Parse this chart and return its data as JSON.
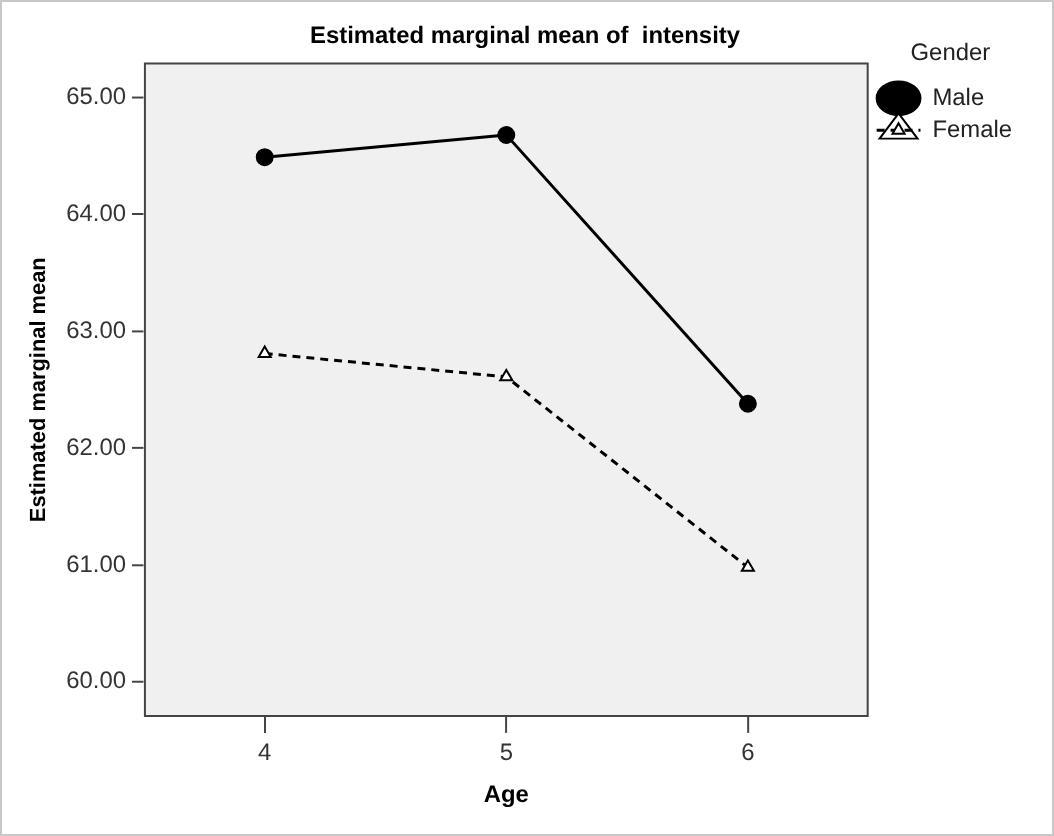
{
  "chart_data": {
    "type": "line",
    "title": "Estimated marginal mean of  intensity",
    "xlabel": "Age",
    "ylabel": "Estimated marginal mean",
    "legend_title": "Gender",
    "categories": [
      "4",
      "5",
      "6"
    ],
    "series": [
      {
        "name": "Male",
        "color": "#000000",
        "values": [
          64.49,
          64.68,
          62.38
        ],
        "marker": "circle",
        "line_style": "solid"
      },
      {
        "name": "Female",
        "color": "#000000",
        "values": [
          62.81,
          62.61,
          60.98
        ],
        "marker": "triangle",
        "line_style": "dashed"
      }
    ],
    "ylim": [
      59.7,
      65.3
    ],
    "yticks": [
      {
        "value": 60,
        "label": "60.00"
      },
      {
        "value": 61,
        "label": "61.00"
      },
      {
        "value": 62,
        "label": "62.00"
      },
      {
        "value": 63,
        "label": "63.00"
      },
      {
        "value": 64,
        "label": "64.00"
      },
      {
        "value": 65,
        "label": "65.00"
      }
    ],
    "grid": false,
    "legend": "top right"
  }
}
